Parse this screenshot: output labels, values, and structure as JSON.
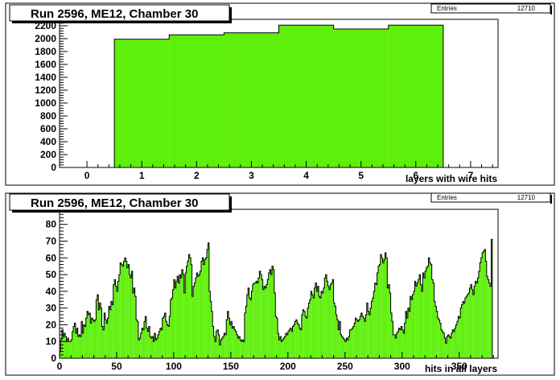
{
  "colors": {
    "fill": "#5ef00a",
    "line": "#000000",
    "background": "#ffffff",
    "frame": "#000000"
  },
  "charts": [
    {
      "title": "Run 2596, ME12, Chamber 30",
      "stats_label": "Entries",
      "stats_value": "12710",
      "xlabel": "layers with wire hits"
    },
    {
      "title": "Run 2596, ME12, Chamber 30",
      "stats_label": "Entries",
      "stats_value": "12710",
      "xlabel": "hits in all layers"
    }
  ],
  "chart_data": [
    {
      "type": "bar",
      "title": "Run 2596, ME12, Chamber 30",
      "xlabel": "layers with wire hits",
      "ylabel": "",
      "xlim": [
        -0.5,
        7.5
      ],
      "ylim": [
        0,
        2300
      ],
      "xticks": [
        0,
        1,
        2,
        3,
        4,
        5,
        6,
        7
      ],
      "yticks": [
        0,
        200,
        400,
        600,
        800,
        1000,
        1200,
        1400,
        1600,
        1800,
        2000,
        2200
      ],
      "categories": [
        1,
        2,
        3,
        4,
        5,
        6
      ],
      "values": [
        1990,
        2060,
        2090,
        2210,
        2150,
        2210
      ],
      "stats": {
        "Entries": 12710
      },
      "legend": "top-right"
    },
    {
      "type": "bar",
      "title": "Run 2596, ME12, Chamber 30",
      "xlabel": "hits in all layers",
      "ylabel": "",
      "xlim": [
        0,
        384
      ],
      "ylim": [
        0,
        89
      ],
      "xticks": [
        0,
        50,
        100,
        150,
        200,
        250,
        300,
        350
      ],
      "yticks": [
        0,
        10,
        20,
        30,
        40,
        50,
        60,
        70,
        80
      ],
      "bin_width": 1,
      "values": [
        4,
        11,
        17,
        13,
        15,
        13,
        10,
        12,
        10,
        10,
        11,
        16,
        19,
        21,
        15,
        18,
        13,
        14,
        13,
        22,
        15,
        20,
        19,
        24,
        28,
        26,
        27,
        21,
        24,
        23,
        22,
        23,
        35,
        38,
        29,
        33,
        30,
        19,
        17,
        27,
        23,
        21,
        24,
        31,
        29,
        34,
        32,
        44,
        47,
        43,
        40,
        46,
        50,
        57,
        56,
        55,
        58,
        60,
        58,
        54,
        56,
        50,
        48,
        52,
        39,
        42,
        37,
        23,
        22,
        11,
        12,
        15,
        18,
        17,
        22,
        25,
        18,
        16,
        19,
        13,
        12,
        13,
        10,
        15,
        11,
        12,
        14,
        16,
        18,
        17,
        24,
        25,
        27,
        22,
        20,
        19,
        25,
        35,
        36,
        41,
        47,
        42,
        46,
        49,
        45,
        50,
        48,
        53,
        50,
        39,
        51,
        55,
        58,
        62,
        60,
        56,
        37,
        43,
        45,
        48,
        51,
        49,
        50,
        52,
        58,
        60,
        56,
        59,
        60,
        65,
        69,
        40,
        34,
        28,
        19,
        13,
        10,
        16,
        17,
        14,
        8,
        11,
        12,
        13,
        15,
        14,
        23,
        28,
        24,
        20,
        22,
        18,
        19,
        17,
        16,
        14,
        12,
        13,
        11,
        10,
        11,
        10,
        27,
        31,
        38,
        42,
        36,
        35,
        40,
        44,
        45,
        45,
        46,
        45,
        48,
        52,
        50,
        47,
        41,
        43,
        42,
        44,
        47,
        51,
        53,
        50,
        55,
        53,
        39,
        25,
        24,
        15,
        11,
        13,
        10,
        11,
        12,
        13,
        15,
        14,
        16,
        17,
        18,
        16,
        19,
        20,
        22,
        23,
        21,
        20,
        18,
        17,
        26,
        29,
        28,
        25,
        24,
        30,
        33,
        35,
        40,
        38,
        36,
        42,
        45,
        40,
        43,
        37,
        36,
        40,
        39,
        42,
        48,
        50,
        46,
        43,
        41,
        44,
        45,
        47,
        33,
        31,
        26,
        23,
        17,
        22,
        14,
        13,
        12,
        11,
        10,
        12,
        11,
        13,
        17,
        17,
        18,
        19,
        21,
        24,
        23,
        22,
        23,
        25,
        27,
        25,
        24,
        22,
        26,
        33,
        28,
        26,
        30,
        34,
        36,
        40,
        45,
        44,
        51,
        55,
        56,
        62,
        60,
        57,
        59,
        63,
        60,
        42,
        44,
        39,
        27,
        22,
        14,
        14,
        12,
        15,
        16,
        18,
        17,
        19,
        17,
        15,
        21,
        28,
        24,
        30,
        28,
        37,
        35,
        38,
        40,
        46,
        43,
        45,
        47,
        50,
        44,
        40,
        51,
        48,
        52,
        54,
        55,
        60,
        57,
        56,
        47,
        45,
        34,
        31,
        28,
        24,
        23,
        21,
        17,
        16,
        15,
        12,
        9,
        13,
        14,
        13,
        12,
        15,
        17,
        16,
        18,
        20,
        22,
        25,
        24,
        30,
        32,
        34,
        33,
        36,
        37,
        38,
        39,
        42,
        44,
        41,
        38,
        43,
        46,
        45,
        48,
        52,
        57,
        60,
        63,
        64,
        65,
        58,
        49,
        47,
        45,
        43,
        71
      ],
      "stats": {
        "Entries": 12710
      },
      "legend": "top-right"
    }
  ]
}
